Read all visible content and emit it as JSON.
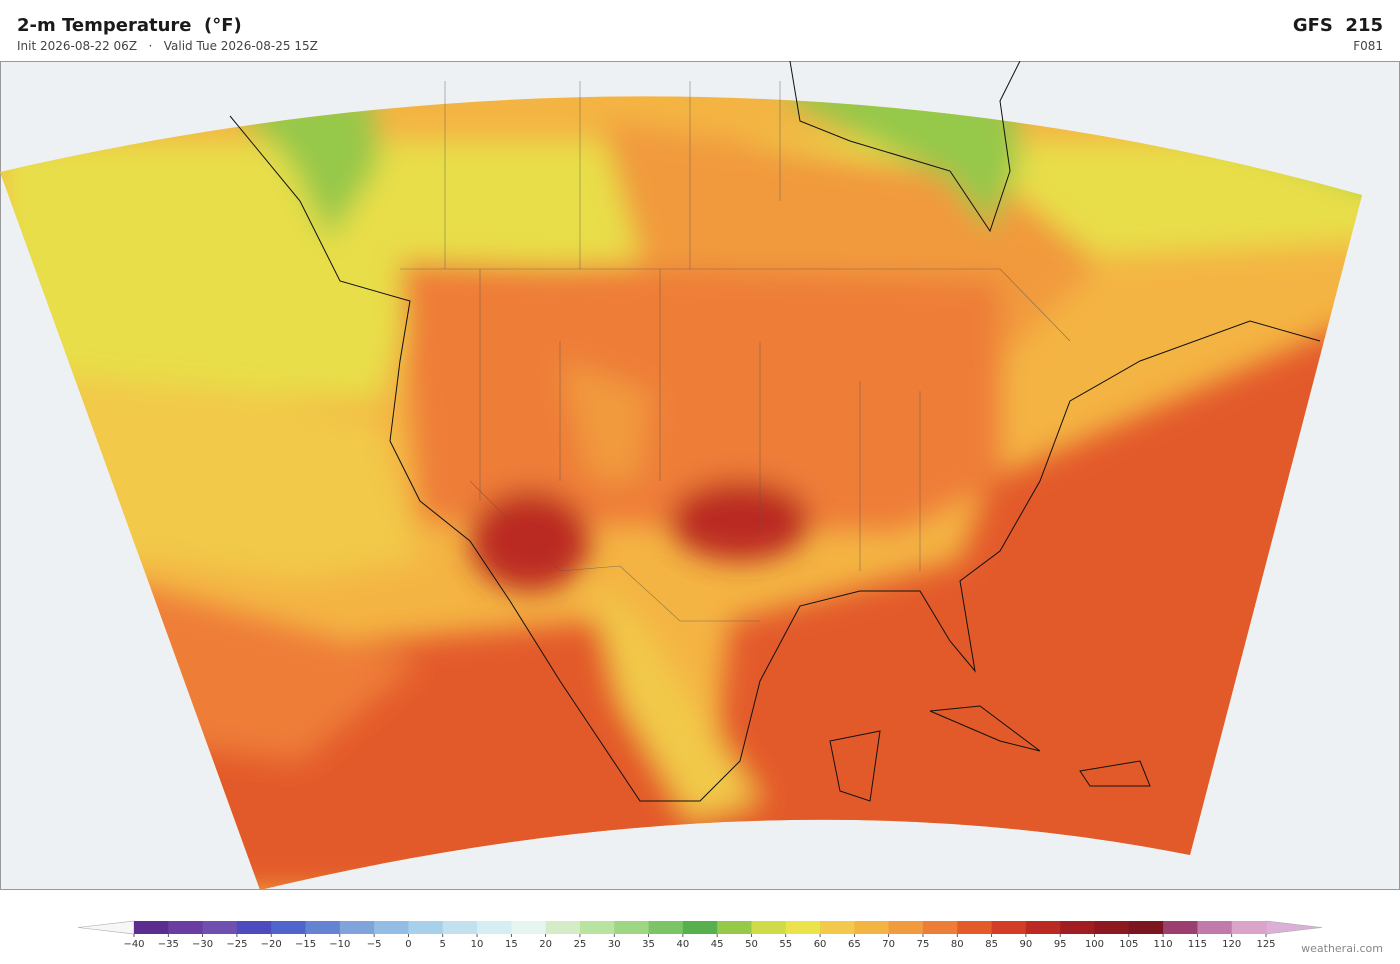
{
  "header": {
    "title": "2-m Temperature  (°F)",
    "subtitle": "Init 2026-08-22 06Z   ·   Valid Tue 2026-08-25 15Z",
    "model": "GFS  215",
    "forecast_hour": "F081"
  },
  "colorbar": {
    "ticks": [
      {
        "value": -40,
        "label": "−40"
      },
      {
        "value": -35,
        "label": "−35"
      },
      {
        "value": -30,
        "label": "−30"
      },
      {
        "value": -25,
        "label": "−25"
      },
      {
        "value": -20,
        "label": "−20"
      },
      {
        "value": -15,
        "label": "−15"
      },
      {
        "value": -10,
        "label": "−10"
      },
      {
        "value": -5,
        "label": "−5"
      },
      0,
      5,
      10,
      15,
      20,
      25,
      30,
      35,
      40,
      45,
      50,
      55,
      60,
      65,
      70,
      75,
      80,
      85,
      90,
      95,
      100,
      105,
      110,
      115,
      120,
      125
    ],
    "colors": [
      "#5b2d8e",
      "#6a3ea0",
      "#6f4fb0",
      "#4c4cbf",
      "#5064cc",
      "#6483d3",
      "#7fa3da",
      "#94bde3",
      "#a9d0ea",
      "#c1e1ef",
      "#d6eef2",
      "#e6f5ee",
      "#d4edc8",
      "#b8e3a0",
      "#9ed784",
      "#7cc567",
      "#56b04d",
      "#96c84a",
      "#cfdc4a",
      "#ece24a",
      "#f2c94a",
      "#f4b443",
      "#f19a3e",
      "#ee7d38",
      "#e35a2b",
      "#d13d25",
      "#bb2a22",
      "#a21d21",
      "#8c1820",
      "#7b1620",
      "#9a3f6f",
      "#c27aaa",
      "#d9a3ca"
    ],
    "under_color": "#f7f7f7",
    "over_color": "#dcb0d6"
  },
  "credit": "weatherai.com"
}
